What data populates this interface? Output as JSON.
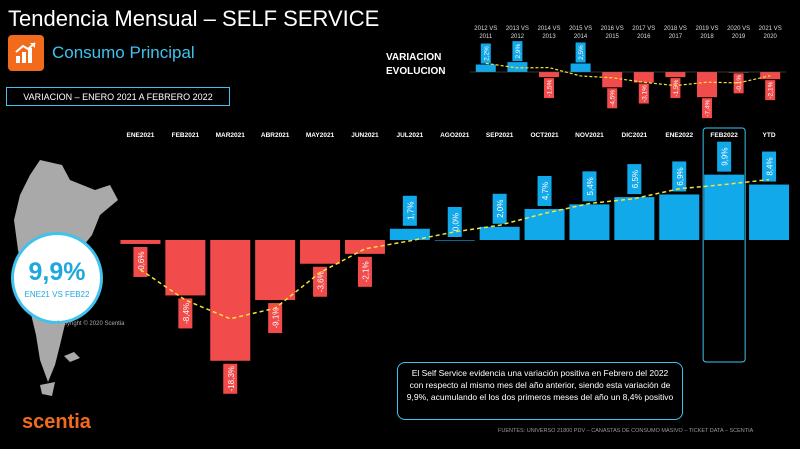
{
  "header": {
    "title": "Tendencia Mensual –  SELF SERVICE",
    "subtitle": "Consumo Principal",
    "period": "VARIACION – ENERO 2021 A FEBRERO 2022",
    "mini_label_1": "VARIACION",
    "mini_label_2": "EVOLUCION"
  },
  "highlight": {
    "value": "9,9%",
    "caption": "ENE21 VS FEB22"
  },
  "copyright": "Copyright © 2020 Scentia",
  "info_text": "El Self Service evidencia una variación positiva en Febrero del 2022 con respecto al mismo mes del año anterior, siendo esta variación de 9,9%, acumulando el los dos primeros meses del año un 8,4% positivo",
  "brand": "scentia",
  "footer": "FUENTES: UNIVERSO 21800 PDV – CANASTAS DE CONSUMO MASIVO – TICKET DATA  – SCENTIA",
  "colors": {
    "positive": "#12a9ea",
    "negative": "#f24b4b",
    "trend": "#f5e33a",
    "accent": "#3fc3ee",
    "brand": "#f26b1d"
  },
  "chart_data": [
    {
      "type": "bar",
      "categories": [
        "ENE2021",
        "FEB2021",
        "MAR2021",
        "ABR2021",
        "MAY2021",
        "JUN2021",
        "JUL2021",
        "AGO2021",
        "SEP2021",
        "OCT2021",
        "NOV2021",
        "DIC2021",
        "ENE2022",
        "FEB2022",
        "YTD"
      ],
      "values": [
        -0.6,
        -8.4,
        -18.3,
        -9.1,
        -3.6,
        -2.1,
        1.7,
        0.0,
        2.0,
        4.7,
        5.4,
        6.5,
        6.9,
        9.9,
        8.4
      ],
      "data_labels": [
        "-0,6%",
        "-8,4%",
        "-18,3%",
        "-9,1%",
        "-3,6%",
        "-2,1%",
        "1,7%",
        "0,0%",
        "2,0%",
        "4,7%",
        "5,4%",
        "6,5%",
        "6,9%",
        "9,9%",
        "8,4%"
      ],
      "trend": "dashed moving average line",
      "highlighted_category": "FEB2022"
    },
    {
      "type": "bar",
      "categories": [
        "2012 VS 2011",
        "2013 VS 2012",
        "2014 VS 2013",
        "2015 VS 2014",
        "2016 VS 2015",
        "2017 VS 2016",
        "2018 VS 2017",
        "2019 VS 2018",
        "2020 VS 2019",
        "2021 VS 2020"
      ],
      "values": [
        2.2,
        2.9,
        -1.5,
        2.5,
        -4.5,
        -3.1,
        -1.5,
        -7.4,
        -0.1,
        -2.1
      ],
      "data_labels": [
        "2,2%",
        "2,9%",
        "-1,5%",
        "2,5%",
        "-4,5%",
        "-3,1%",
        "-1,5%",
        "-7,4%",
        "-0,1%",
        "-2,1%"
      ],
      "trend": "dashed moving average line"
    }
  ]
}
